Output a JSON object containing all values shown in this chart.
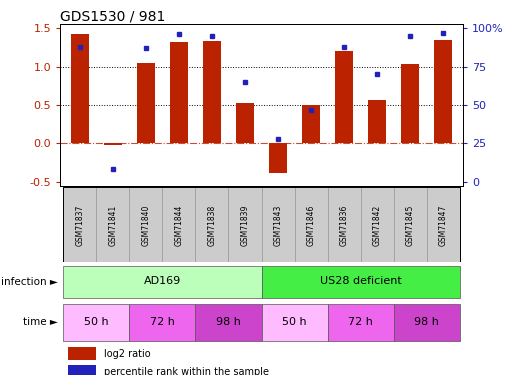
{
  "title": "GDS1530 / 981",
  "samples": [
    "GSM71837",
    "GSM71841",
    "GSM71840",
    "GSM71844",
    "GSM71838",
    "GSM71839",
    "GSM71843",
    "GSM71846",
    "GSM71836",
    "GSM71842",
    "GSM71845",
    "GSM71847"
  ],
  "log2_ratio": [
    1.42,
    -0.02,
    1.05,
    1.32,
    1.33,
    0.53,
    -0.38,
    0.5,
    1.2,
    0.56,
    1.03,
    1.35
  ],
  "percentile_rank": [
    88,
    8,
    87,
    96,
    95,
    65,
    28,
    47,
    88,
    70,
    95,
    97
  ],
  "bar_color": "#BB2200",
  "dot_color": "#2222BB",
  "left_ylim": [
    -0.55,
    1.55
  ],
  "right_ylim": [
    -3.666,
    106.666
  ],
  "left_yticks": [
    -0.5,
    0.0,
    0.5,
    1.0,
    1.5
  ],
  "right_yticks": [
    0,
    25,
    50,
    75,
    100
  ],
  "hline_y": 0.0,
  "dotted_hlines": [
    1.0,
    0.5
  ],
  "infection_groups": [
    {
      "label": "AD169",
      "start": 0,
      "end": 6,
      "color": "#BBFFBB"
    },
    {
      "label": "US28 deficient",
      "start": 6,
      "end": 12,
      "color": "#44EE44"
    }
  ],
  "time_groups": [
    {
      "label": "50 h",
      "start": 0,
      "end": 2,
      "color": "#FFBBFF"
    },
    {
      "label": "72 h",
      "start": 2,
      "end": 4,
      "color": "#EE66EE"
    },
    {
      "label": "98 h",
      "start": 4,
      "end": 6,
      "color": "#CC44CC"
    },
    {
      "label": "50 h",
      "start": 6,
      "end": 8,
      "color": "#FFBBFF"
    },
    {
      "label": "72 h",
      "start": 8,
      "end": 10,
      "color": "#EE66EE"
    },
    {
      "label": "98 h",
      "start": 10,
      "end": 12,
      "color": "#CC44CC"
    }
  ],
  "infection_label": "infection",
  "time_label": "time",
  "legend_log2": "log2 ratio",
  "legend_pct": "percentile rank within the sample",
  "bar_width": 0.55,
  "sample_box_color": "#CCCCCC"
}
